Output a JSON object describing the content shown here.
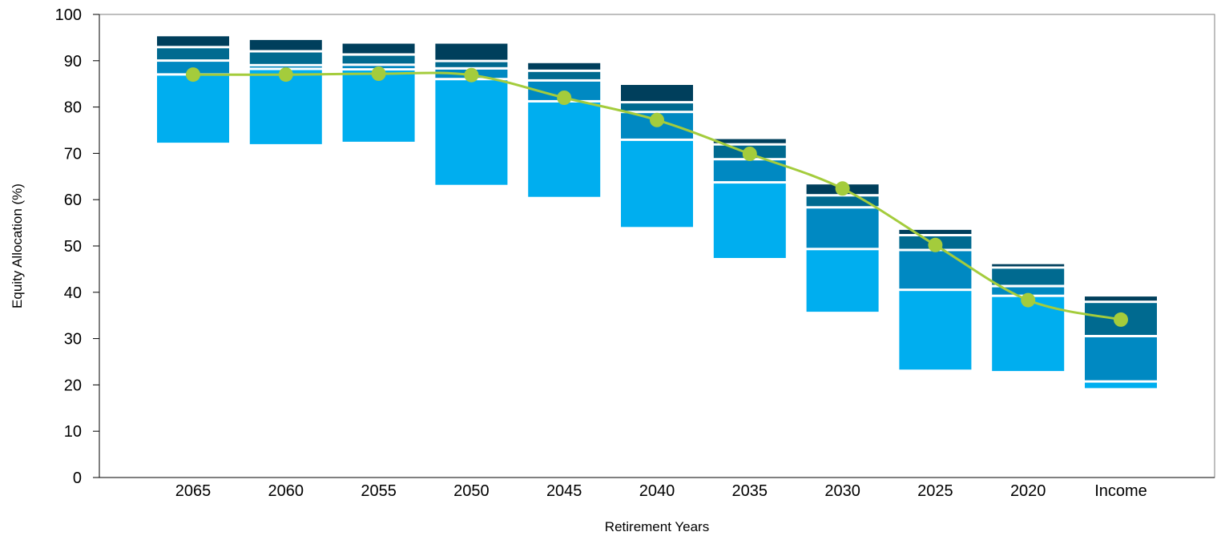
{
  "chart_data": {
    "type": "bar",
    "title": "",
    "xlabel": "Retirement Years",
    "ylabel": "Equity Allocation (%)",
    "ylim": [
      0,
      100
    ],
    "yticks": [
      0,
      10,
      20,
      30,
      40,
      50,
      60,
      70,
      80,
      90,
      100
    ],
    "grid": false,
    "legend": "none",
    "categories": [
      "2065",
      "2060",
      "2055",
      "2050",
      "2045",
      "2040",
      "2035",
      "2030",
      "2025",
      "2020",
      "Income"
    ],
    "stacked_ranges": [
      {
        "segments": [
          [
            72.3,
            87.3
          ],
          [
            87.3,
            90.3
          ],
          [
            90.3,
            93.2
          ],
          [
            93.2,
            95.8
          ]
        ]
      },
      {
        "segments": [
          [
            72.0,
            88.5
          ],
          [
            88.5,
            89.3
          ],
          [
            89.3,
            92.3
          ],
          [
            92.3,
            95.0
          ]
        ]
      },
      {
        "segments": [
          [
            72.5,
            88.4
          ],
          [
            88.4,
            89.4
          ],
          [
            89.4,
            91.6
          ],
          [
            91.6,
            94.2
          ]
        ]
      },
      {
        "segments": [
          [
            63.2,
            86.3
          ],
          [
            86.3,
            88.6
          ],
          [
            88.6,
            90.2
          ],
          [
            90.2,
            94.2
          ]
        ]
      },
      {
        "segments": [
          [
            60.6,
            81.5
          ],
          [
            81.5,
            86.0
          ],
          [
            86.0,
            88.1
          ],
          [
            88.1,
            90.0
          ]
        ]
      },
      {
        "segments": [
          [
            54.1,
            73.2
          ],
          [
            73.2,
            79.2
          ],
          [
            79.2,
            81.3
          ],
          [
            81.3,
            85.3
          ]
        ]
      },
      {
        "segments": [
          [
            47.4,
            64.0
          ],
          [
            64.0,
            69.0
          ],
          [
            69.0,
            72.2
          ],
          [
            72.2,
            73.6
          ]
        ]
      },
      {
        "segments": [
          [
            35.8,
            49.6
          ],
          [
            49.6,
            58.6
          ],
          [
            58.6,
            61.2
          ],
          [
            61.2,
            63.8
          ]
        ]
      },
      {
        "segments": [
          [
            23.3,
            40.8
          ],
          [
            40.8,
            49.4
          ],
          [
            49.4,
            52.6
          ],
          [
            52.6,
            54.0
          ]
        ]
      },
      {
        "segments": [
          [
            23.0,
            39.5
          ],
          [
            39.5,
            41.6
          ],
          [
            41.6,
            45.6
          ],
          [
            45.6,
            46.6
          ]
        ]
      },
      {
        "segments": [
          [
            19.3,
            21.0
          ],
          [
            21.0,
            30.8
          ],
          [
            30.8,
            38.2
          ],
          [
            38.2,
            39.6
          ]
        ]
      }
    ],
    "line_series": {
      "values": [
        87.0,
        87.0,
        87.2,
        86.9,
        82.0,
        77.2,
        69.9,
        62.4,
        50.2,
        38.3,
        34.1
      ]
    },
    "segment_colors": [
      "#00aeef",
      "#0089c2",
      "#006a90",
      "#003f5c"
    ],
    "line_color": "#a4cc3c",
    "bar_gap_color": "#ffffff",
    "axis_color": "#000000",
    "frame_color": "#7f7f7f"
  }
}
